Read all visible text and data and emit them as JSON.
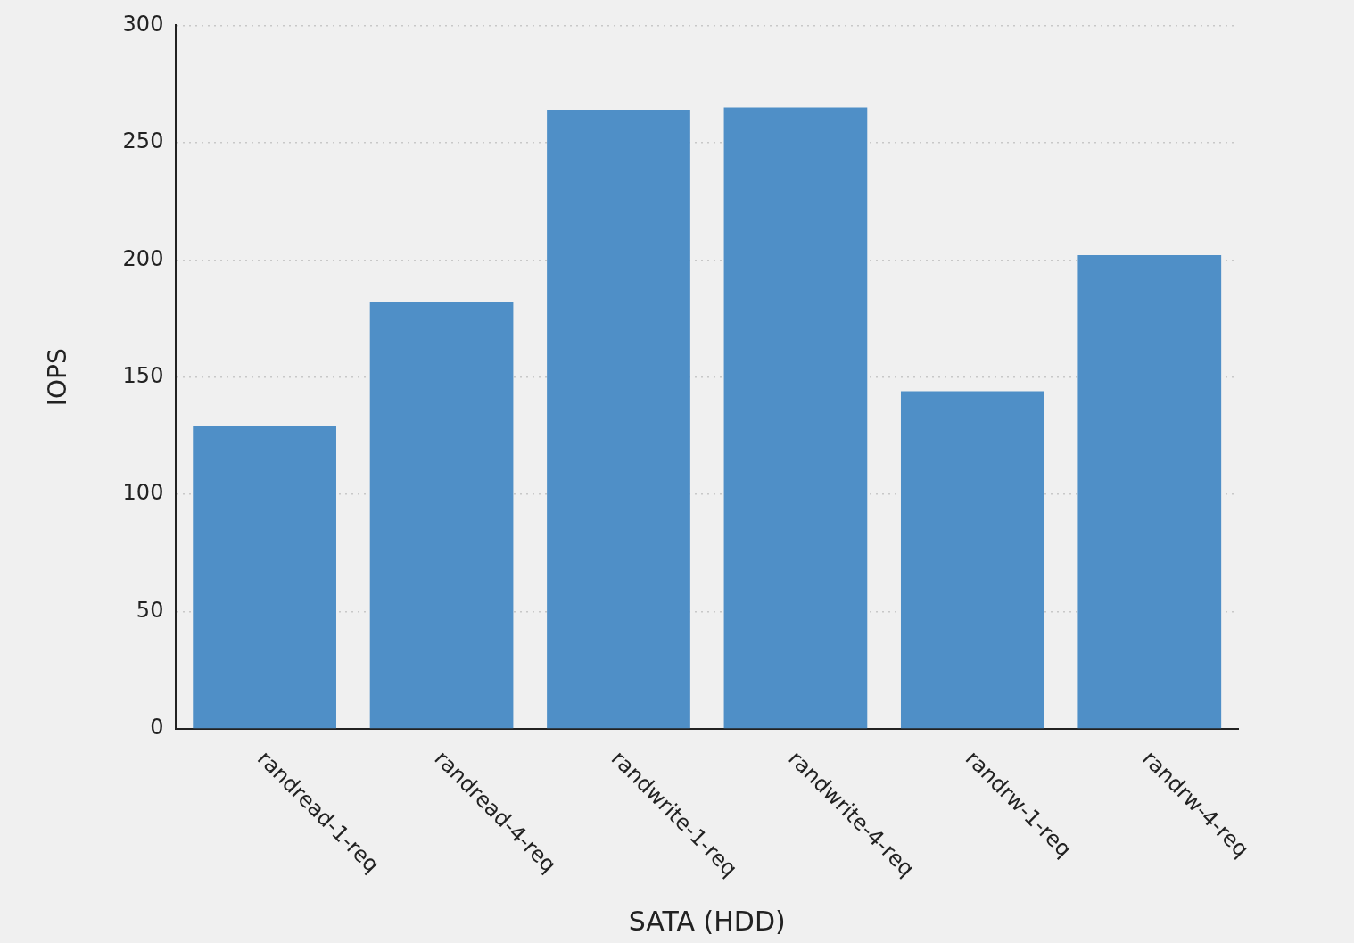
{
  "chart_data": {
    "type": "bar",
    "xlabel": "SATA (HDD)",
    "ylabel": "IOPS",
    "categories": [
      "randread-1-req",
      "randread-4-req",
      "randwrite-1-req",
      "randwrite-4-req",
      "randrw-1-req",
      "randrw-4-req"
    ],
    "values": [
      129,
      182,
      264,
      265,
      144,
      202
    ],
    "color": "#4f8fc7",
    "ylim": [
      0,
      300
    ],
    "yticks": [
      0,
      50,
      100,
      150,
      200,
      250,
      300
    ],
    "grid": "y",
    "legend": false
  }
}
